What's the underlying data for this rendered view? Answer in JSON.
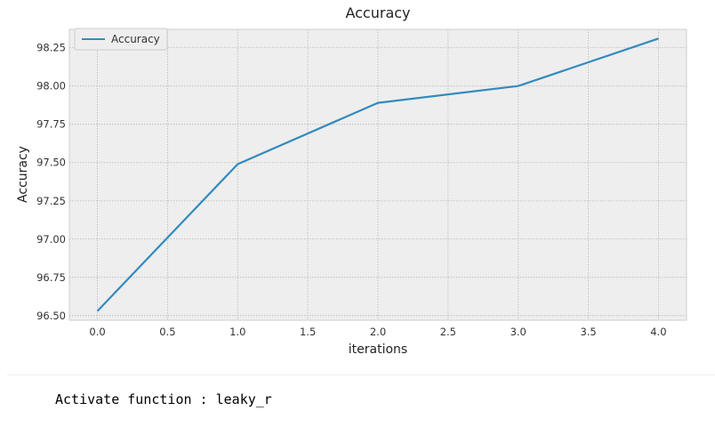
{
  "chart_data": {
    "type": "line",
    "title": "Accuracy",
    "xlabel": "iterations",
    "ylabel": "Accuracy",
    "x": [
      0,
      1,
      2,
      3,
      4
    ],
    "series": [
      {
        "name": "Accuracy",
        "values": [
          96.53,
          97.49,
          97.89,
          98.0,
          98.31
        ],
        "color": "#348abd"
      }
    ],
    "xlim": [
      -0.2,
      4.2
    ],
    "ylim": [
      96.47,
      98.37
    ],
    "xticks": [
      "0.0",
      "0.5",
      "1.0",
      "1.5",
      "2.0",
      "2.5",
      "3.0",
      "3.5",
      "4.0"
    ],
    "yticks": [
      "96.50",
      "96.75",
      "97.00",
      "97.25",
      "97.50",
      "97.75",
      "98.00",
      "98.25"
    ],
    "grid": true,
    "legend_position": "top-left",
    "background": "#eeeeee"
  },
  "output": {
    "text": "Activate function : leaky_r"
  }
}
